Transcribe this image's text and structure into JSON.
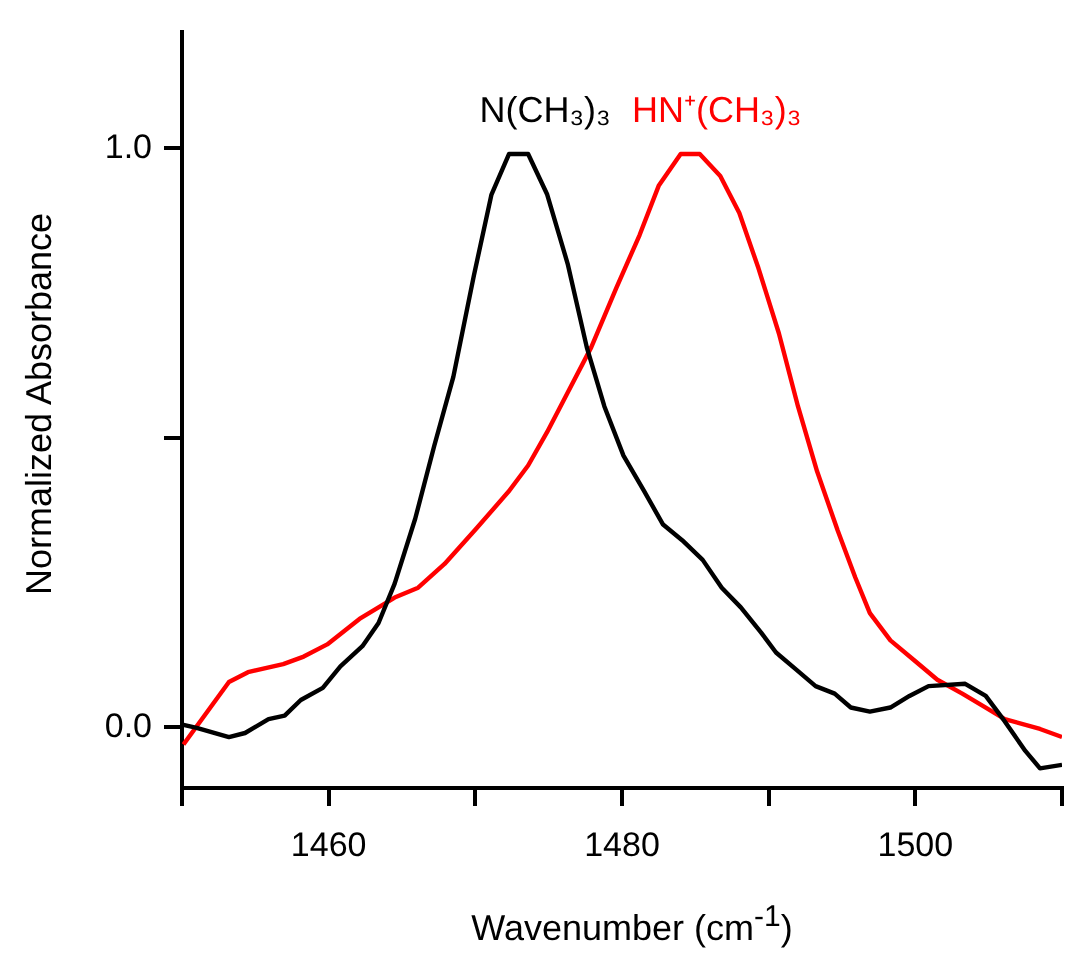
{
  "chart_data": {
    "type": "line",
    "xlabel": "Wavenumber (cm$^{-1}$)",
    "ylabel": "Normalized Absorbance",
    "xlim": [
      1450,
      1510
    ],
    "xticks": [
      {
        "value": 1450,
        "label": null
      },
      1460,
      {
        "value": 1470,
        "label": null
      },
      1480,
      {
        "value": 1490,
        "label": null
      },
      1500,
      {
        "value": 1510,
        "label": null
      }
    ],
    "ylim": [
      -0.105,
      1.2
    ],
    "yticks": [
      {
        "value": 0,
        "label": "0.0"
      },
      {
        "value": 0.5,
        "label": null
      },
      {
        "value": 1,
        "label": "1.0"
      }
    ],
    "grid": false,
    "legend": false,
    "marker": "none",
    "line_style": "solid",
    "series": [
      {
        "name": "N(CH₃)₃",
        "color": "#000000",
        "x": [
          1450.1,
          1451,
          1453.2,
          1454.3,
          1455.9,
          1457,
          1458.1,
          1459.6,
          1460.8,
          1462.3,
          1463.4,
          1464.5,
          1465.9,
          1467.2,
          1468.5,
          1469.9,
          1471.1,
          1472.3,
          1473.6,
          1474.9,
          1476.3,
          1477.6,
          1478.8,
          1480.1,
          1481.5,
          1482.8,
          1484.1,
          1485.5,
          1486.8,
          1488.1,
          1489.5,
          1490.5,
          1491.9,
          1493.2,
          1494.5,
          1495.6,
          1496.9,
          1498.3,
          1499.6,
          1500.9,
          1503.4,
          1504.8,
          1506.1,
          1507.5,
          1508.5,
          1510
        ],
        "values": [
          0.004,
          -0.001,
          -0.017,
          -0.01,
          0.014,
          0.02,
          0.047,
          0.068,
          0.105,
          0.14,
          0.18,
          0.248,
          0.36,
          0.486,
          0.605,
          0.78,
          0.92,
          0.99,
          0.99,
          0.92,
          0.8,
          0.656,
          0.554,
          0.469,
          0.408,
          0.35,
          0.323,
          0.289,
          0.241,
          0.207,
          0.163,
          0.129,
          0.099,
          0.071,
          0.058,
          0.034,
          0.027,
          0.034,
          0.054,
          0.071,
          0.075,
          0.054,
          0.01,
          -0.041,
          -0.071,
          -0.065
        ]
      },
      {
        "name": "HN⁺(CH₃)₃",
        "color": "#ff0000",
        "x": [
          1450.1,
          1453.2,
          1454.5,
          1456.9,
          1458.3,
          1459.9,
          1462.1,
          1464.5,
          1466.1,
          1467.9,
          1470.1,
          1472.3,
          1473.6,
          1474.9,
          1476.3,
          1477.9,
          1479.6,
          1481.2,
          1482.5,
          1484,
          1485.3,
          1486.7,
          1488,
          1489.3,
          1490.7,
          1492,
          1493.3,
          1494.7,
          1495.9,
          1496.9,
          1498.3,
          1499.9,
          1501.5,
          1503.2,
          1504.8,
          1506.1,
          1508.5,
          1510
        ],
        "values": [
          -0.03,
          0.078,
          0.095,
          0.109,
          0.122,
          0.143,
          0.187,
          0.224,
          0.241,
          0.282,
          0.344,
          0.408,
          0.452,
          0.51,
          0.578,
          0.656,
          0.758,
          0.85,
          0.935,
          0.99,
          0.99,
          0.952,
          0.888,
          0.793,
          0.68,
          0.554,
          0.442,
          0.34,
          0.259,
          0.197,
          0.15,
          0.116,
          0.082,
          0.058,
          0.034,
          0.014,
          -0.003,
          -0.017
        ]
      }
    ]
  }
}
